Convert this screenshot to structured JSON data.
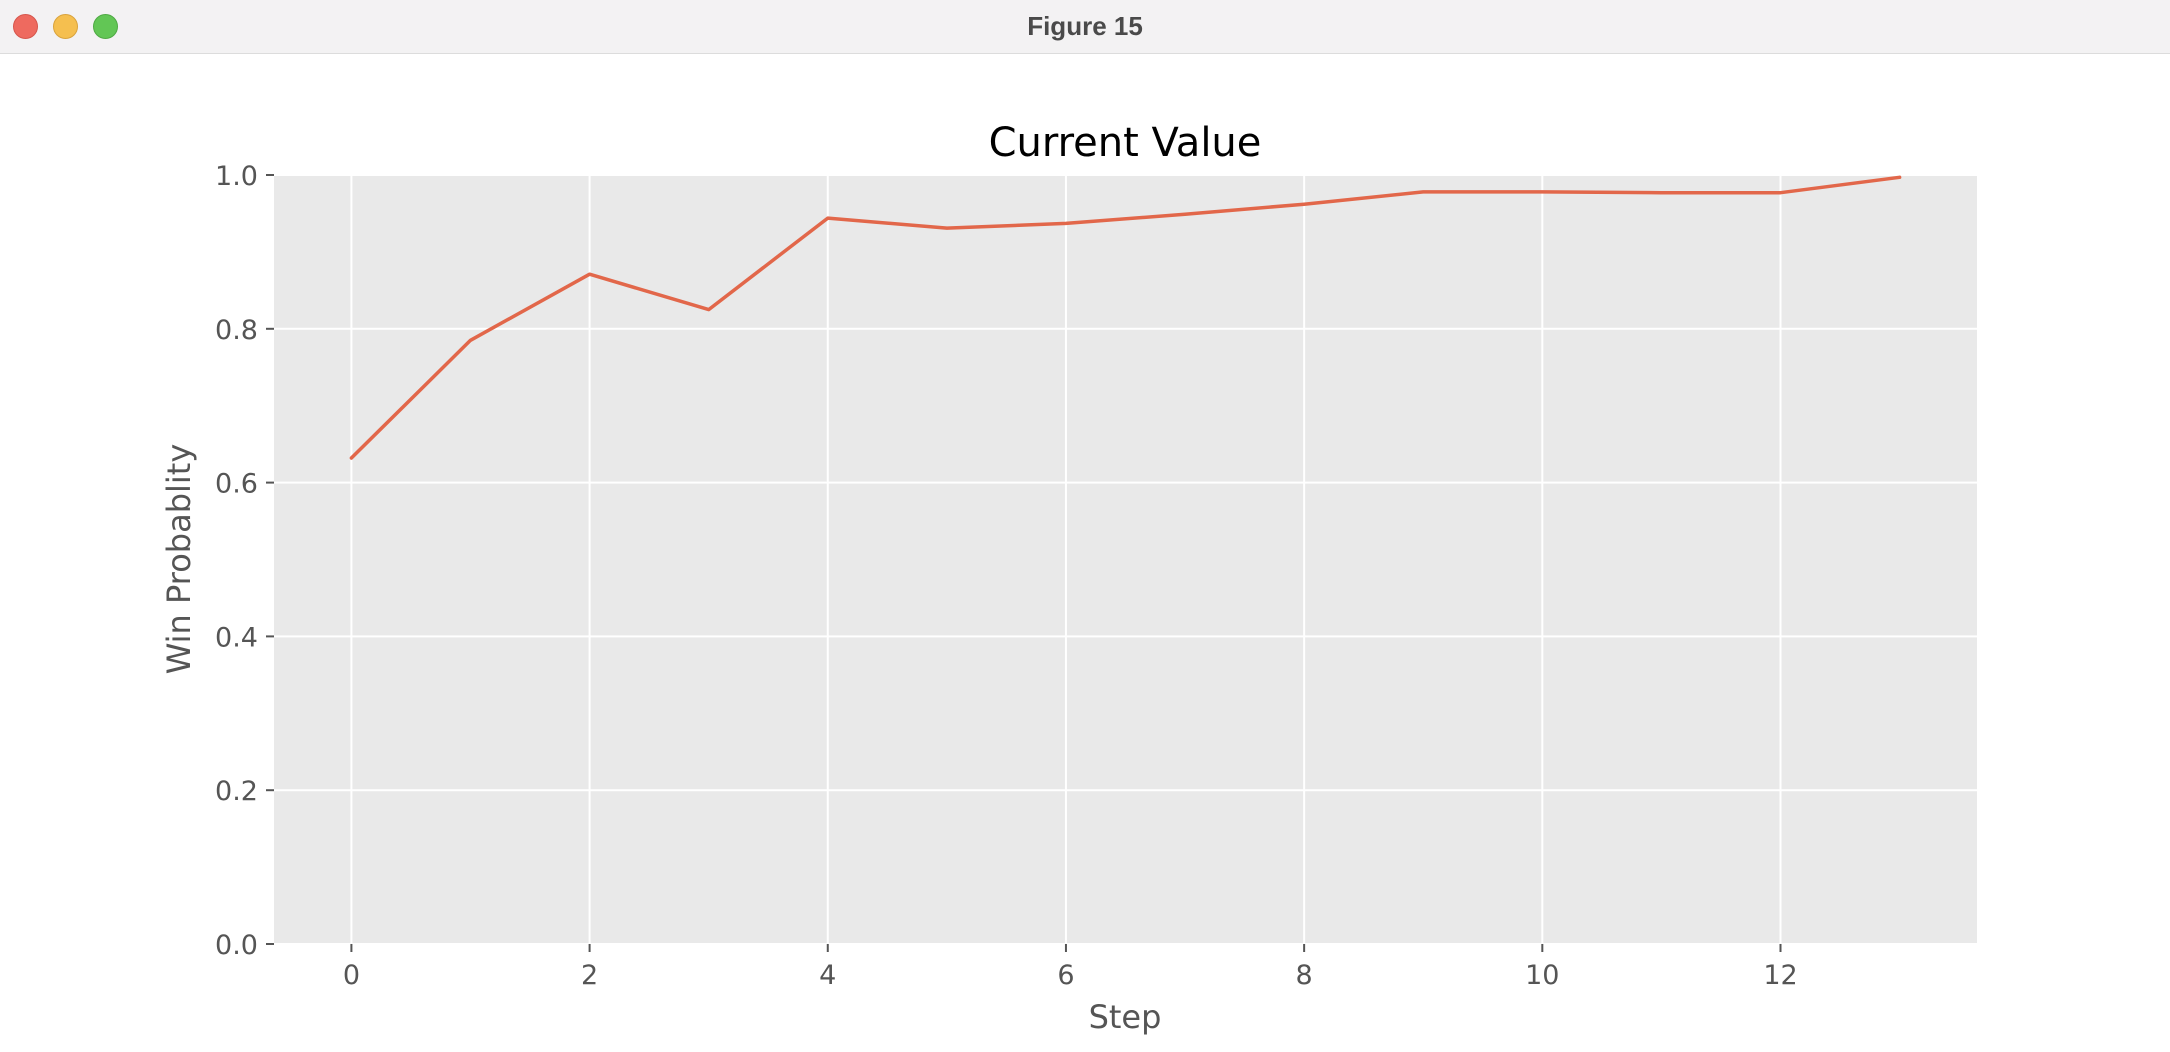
{
  "window": {
    "title": "Figure 15"
  },
  "chart_data": {
    "type": "line",
    "title": "Current Value",
    "xlabel": "Step",
    "ylabel": "Win Probablity",
    "xlim": [
      -0.65,
      13.65
    ],
    "ylim": [
      0.0,
      1.0
    ],
    "x_ticks": [
      0,
      2,
      4,
      6,
      8,
      10,
      12
    ],
    "y_ticks": [
      0.0,
      0.2,
      0.4,
      0.6,
      0.8,
      1.0
    ],
    "x_tick_labels": [
      "0",
      "2",
      "4",
      "6",
      "8",
      "10",
      "12"
    ],
    "y_tick_labels": [
      "0.0",
      "0.2",
      "0.4",
      "0.6",
      "0.8",
      "1.0"
    ],
    "grid": true,
    "series": [
      {
        "x": [
          0,
          1,
          2,
          3,
          4,
          5,
          6,
          7,
          8,
          9,
          10,
          11,
          12,
          13
        ],
        "values": [
          0.632,
          0.785,
          0.871,
          0.825,
          0.944,
          0.931,
          0.937,
          0.949,
          0.962,
          0.978,
          0.978,
          0.977,
          0.977,
          0.997
        ],
        "color": "#e2674a"
      }
    ],
    "colors": {
      "plot_background": "#e9e9e9",
      "grid": "#ffffff",
      "tick_text": "#555555"
    }
  }
}
